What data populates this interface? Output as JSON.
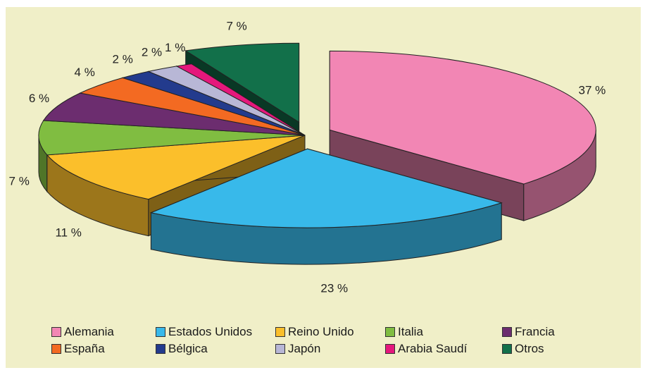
{
  "chart_data": {
    "type": "pie",
    "title": "",
    "categories": [
      "Alemania",
      "Estados Unidos",
      "Reino Unido",
      "Italia",
      "Francia",
      "España",
      "Bélgica",
      "Japón",
      "Arabia Saudí",
      "Otros"
    ],
    "values": [
      37,
      23,
      11,
      7,
      6,
      4,
      2,
      2,
      1,
      7
    ],
    "labels": [
      "37 %",
      "23 %",
      "11 %",
      "7 %",
      "6 %",
      "4 %",
      "2 %",
      "2 %",
      "1 %",
      "7 %"
    ],
    "colors": [
      "#f286b4",
      "#38b9ea",
      "#fbbf2b",
      "#80bd41",
      "#6c2d6f",
      "#f36a22",
      "#233b8d",
      "#b8b7d6",
      "#e5187c",
      "#12704a"
    ],
    "exploded": [
      "Alemania",
      "Estados Unidos",
      "Otros"
    ],
    "legend": "bottom"
  }
}
